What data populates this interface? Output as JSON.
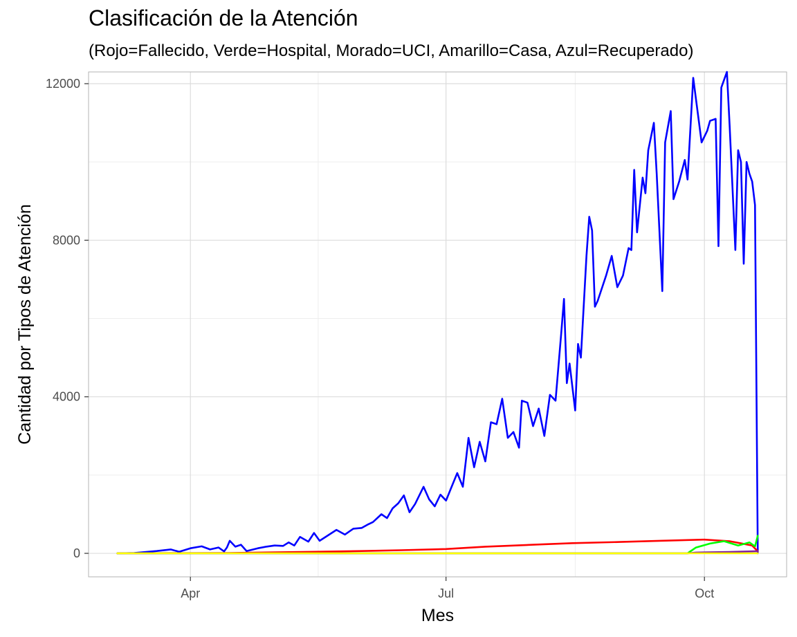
{
  "chart_data": {
    "type": "line",
    "title": "Clasificación de la Atención",
    "subtitle": "(Rojo=Fallecido, Verde=Hospital, Morado=UCI, Amarillo=Casa, Azul=Recuperado)",
    "xlabel": "Mes",
    "ylabel": "Cantidad por Tipos de Atención",
    "x_start": "2020-03-06",
    "x_end": "2020-10-20",
    "xticks": [
      {
        "date": "2020-04-01",
        "label": "Apr"
      },
      {
        "date": "2020-07-01",
        "label": "Jul"
      },
      {
        "date": "2020-10-01",
        "label": "Oct"
      }
    ],
    "yticks": [
      0,
      4000,
      8000,
      12000
    ],
    "ylim": [
      -600,
      12300
    ],
    "grid": true,
    "legend": "none",
    "series": [
      {
        "color": "#0000FF",
        "points": [
          [
            "2020-03-06",
            0
          ],
          [
            "2020-03-12",
            10
          ],
          [
            "2020-03-20",
            60
          ],
          [
            "2020-03-25",
            100
          ],
          [
            "2020-03-28",
            40
          ],
          [
            "2020-04-01",
            130
          ],
          [
            "2020-04-05",
            180
          ],
          [
            "2020-04-08",
            100
          ],
          [
            "2020-04-11",
            150
          ],
          [
            "2020-04-13",
            50
          ],
          [
            "2020-04-14",
            150
          ],
          [
            "2020-04-15",
            320
          ],
          [
            "2020-04-17",
            170
          ],
          [
            "2020-04-19",
            220
          ],
          [
            "2020-04-21",
            60
          ],
          [
            "2020-04-25",
            130
          ],
          [
            "2020-04-28",
            170
          ],
          [
            "2020-05-01",
            200
          ],
          [
            "2020-05-04",
            190
          ],
          [
            "2020-05-06",
            280
          ],
          [
            "2020-05-08",
            200
          ],
          [
            "2020-05-10",
            420
          ],
          [
            "2020-05-13",
            300
          ],
          [
            "2020-05-15",
            520
          ],
          [
            "2020-05-17",
            320
          ],
          [
            "2020-05-20",
            460
          ],
          [
            "2020-05-23",
            600
          ],
          [
            "2020-05-26",
            480
          ],
          [
            "2020-05-29",
            630
          ],
          [
            "2020-06-01",
            650
          ],
          [
            "2020-06-03",
            730
          ],
          [
            "2020-06-05",
            800
          ],
          [
            "2020-06-08",
            1000
          ],
          [
            "2020-06-10",
            900
          ],
          [
            "2020-06-12",
            1150
          ],
          [
            "2020-06-14",
            1280
          ],
          [
            "2020-06-16",
            1480
          ],
          [
            "2020-06-18",
            1050
          ],
          [
            "2020-06-20",
            1260
          ],
          [
            "2020-06-23",
            1700
          ],
          [
            "2020-06-25",
            1380
          ],
          [
            "2020-06-27",
            1200
          ],
          [
            "2020-06-29",
            1500
          ],
          [
            "2020-07-01",
            1350
          ],
          [
            "2020-07-03",
            1700
          ],
          [
            "2020-07-05",
            2050
          ],
          [
            "2020-07-07",
            1700
          ],
          [
            "2020-07-09",
            2950
          ],
          [
            "2020-07-11",
            2200
          ],
          [
            "2020-07-13",
            2850
          ],
          [
            "2020-07-15",
            2350
          ],
          [
            "2020-07-17",
            3350
          ],
          [
            "2020-07-19",
            3300
          ],
          [
            "2020-07-21",
            3950
          ],
          [
            "2020-07-23",
            2950
          ],
          [
            "2020-07-25",
            3100
          ],
          [
            "2020-07-27",
            2700
          ],
          [
            "2020-07-28",
            3900
          ],
          [
            "2020-07-30",
            3850
          ],
          [
            "2020-08-01",
            3250
          ],
          [
            "2020-08-03",
            3700
          ],
          [
            "2020-08-05",
            3000
          ],
          [
            "2020-08-07",
            4050
          ],
          [
            "2020-08-09",
            3900
          ],
          [
            "2020-08-11",
            5600
          ],
          [
            "2020-08-12",
            6500
          ],
          [
            "2020-08-13",
            4350
          ],
          [
            "2020-08-14",
            4850
          ],
          [
            "2020-08-16",
            3650
          ],
          [
            "2020-08-17",
            5350
          ],
          [
            "2020-08-18",
            5000
          ],
          [
            "2020-08-20",
            7600
          ],
          [
            "2020-08-21",
            8600
          ],
          [
            "2020-08-22",
            8250
          ],
          [
            "2020-08-23",
            6300
          ],
          [
            "2020-08-24",
            6450
          ],
          [
            "2020-08-27",
            7100
          ],
          [
            "2020-08-29",
            7600
          ],
          [
            "2020-08-31",
            6800
          ],
          [
            "2020-09-02",
            7100
          ],
          [
            "2020-09-04",
            7800
          ],
          [
            "2020-09-05",
            7750
          ],
          [
            "2020-09-06",
            9800
          ],
          [
            "2020-09-07",
            8200
          ],
          [
            "2020-09-09",
            9600
          ],
          [
            "2020-09-10",
            9200
          ],
          [
            "2020-09-11",
            10300
          ],
          [
            "2020-09-13",
            11000
          ],
          [
            "2020-09-14",
            9700
          ],
          [
            "2020-09-16",
            6700
          ],
          [
            "2020-09-17",
            10500
          ],
          [
            "2020-09-19",
            11300
          ],
          [
            "2020-09-20",
            9050
          ],
          [
            "2020-09-22",
            9500
          ],
          [
            "2020-09-24",
            10050
          ],
          [
            "2020-09-25",
            9550
          ],
          [
            "2020-09-27",
            12150
          ],
          [
            "2020-09-28",
            11600
          ],
          [
            "2020-09-30",
            10500
          ],
          [
            "2020-10-02",
            10800
          ],
          [
            "2020-10-03",
            11050
          ],
          [
            "2020-10-05",
            11100
          ],
          [
            "2020-10-06",
            7850
          ],
          [
            "2020-10-07",
            11900
          ],
          [
            "2020-10-09",
            12300
          ],
          [
            "2020-10-10",
            10900
          ],
          [
            "2020-10-12",
            7750
          ],
          [
            "2020-10-13",
            10300
          ],
          [
            "2020-10-14",
            10000
          ],
          [
            "2020-10-15",
            7400
          ],
          [
            "2020-10-16",
            10000
          ],
          [
            "2020-10-17",
            9700
          ],
          [
            "2020-10-18",
            9500
          ],
          [
            "2020-10-19",
            8900
          ],
          [
            "2020-10-20",
            0
          ]
        ]
      },
      {
        "color": "#FF0000",
        "points": [
          [
            "2020-03-06",
            0
          ],
          [
            "2020-04-15",
            10
          ],
          [
            "2020-05-15",
            40
          ],
          [
            "2020-06-01",
            60
          ],
          [
            "2020-06-15",
            80
          ],
          [
            "2020-07-01",
            110
          ],
          [
            "2020-07-15",
            170
          ],
          [
            "2020-08-01",
            220
          ],
          [
            "2020-08-15",
            260
          ],
          [
            "2020-09-01",
            290
          ],
          [
            "2020-09-15",
            320
          ],
          [
            "2020-10-01",
            350
          ],
          [
            "2020-10-10",
            310
          ],
          [
            "2020-10-18",
            200
          ],
          [
            "2020-10-20",
            50
          ]
        ]
      },
      {
        "color": "#00FF00",
        "points": [
          [
            "2020-03-06",
            0
          ],
          [
            "2020-09-25",
            0
          ],
          [
            "2020-09-28",
            150
          ],
          [
            "2020-10-03",
            250
          ],
          [
            "2020-10-08",
            310
          ],
          [
            "2020-10-13",
            200
          ],
          [
            "2020-10-17",
            280
          ],
          [
            "2020-10-19",
            180
          ],
          [
            "2020-10-20",
            450
          ]
        ]
      },
      {
        "color": "#7E1E9C",
        "points": [
          [
            "2020-03-06",
            0
          ],
          [
            "2020-09-25",
            0
          ],
          [
            "2020-09-28",
            20
          ],
          [
            "2020-10-10",
            35
          ],
          [
            "2020-10-20",
            55
          ]
        ]
      },
      {
        "color": "#FFFF00",
        "points": [
          [
            "2020-03-06",
            0
          ],
          [
            "2020-10-20",
            0
          ]
        ]
      }
    ]
  }
}
